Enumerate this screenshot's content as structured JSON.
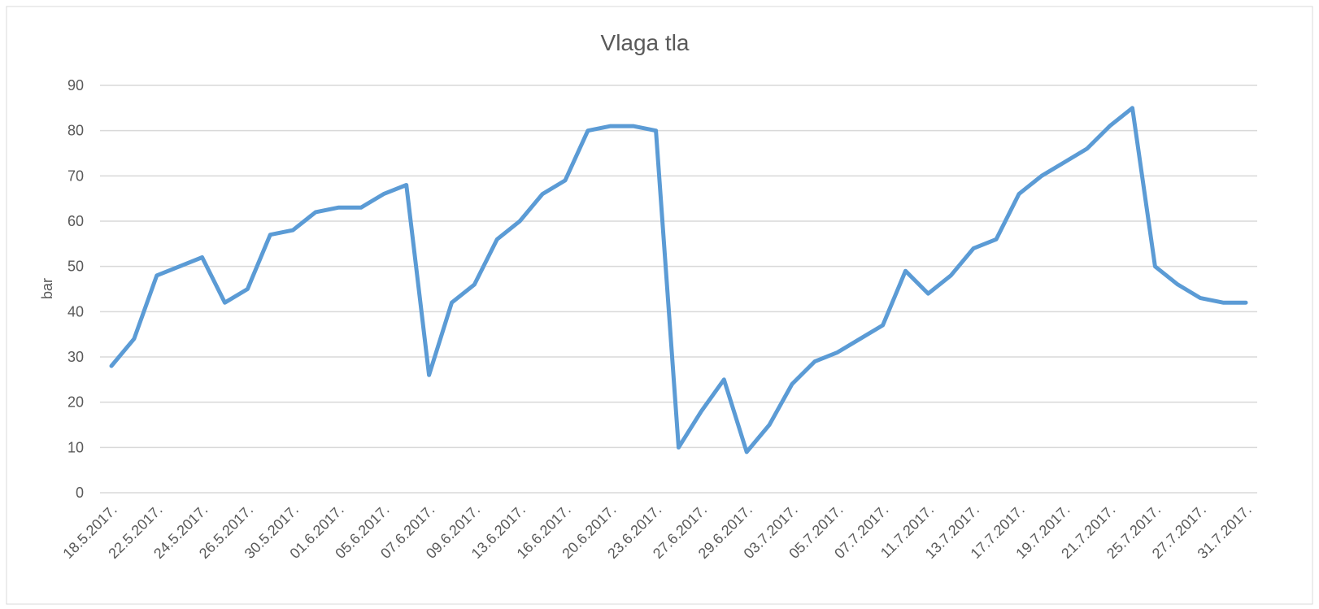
{
  "chart_data": {
    "type": "line",
    "title": "Vlaga  tla",
    "y_label": "bar",
    "categories": [
      "18.5.2017.",
      null,
      "22.5.2017.",
      null,
      "24.5.2017.",
      null,
      "26.5.2017.",
      null,
      "30.5.2017.",
      null,
      "01.6.2017.",
      null,
      "05.6.2017.",
      null,
      "07.6.2017.",
      null,
      "09.6.2017.",
      null,
      "13.6.2017.",
      null,
      "16.6.2017.",
      null,
      "20.6.2017.",
      null,
      "23.6.2017.",
      null,
      "27.6.2017.",
      null,
      "29.6.2017.",
      null,
      "03.7.2017.",
      null,
      "05.7.2017.",
      null,
      "07.7.2017.",
      null,
      "11.7.2017.",
      null,
      "13.7.2017.",
      null,
      "17.7.2017.",
      null,
      "19.7.2017.",
      null,
      "21.7.2017.",
      null,
      "25.7.2017.",
      null,
      "27.7.2017.",
      null,
      "31.7.2017."
    ],
    "values": [
      28,
      34,
      48,
      50,
      52,
      42,
      45,
      57,
      58,
      62,
      63,
      63,
      66,
      68,
      26,
      42,
      46,
      56,
      60,
      66,
      69,
      80,
      81,
      81,
      80,
      10,
      18,
      25,
      9,
      15,
      24,
      29,
      31,
      34,
      37,
      49,
      44,
      48,
      54,
      56,
      66,
      70,
      73,
      76,
      81,
      85,
      50,
      46,
      43,
      42,
      42
    ],
    "color": "#5b9bd5",
    "ylim": [
      0,
      90
    ],
    "yticks": [
      0,
      10,
      20,
      30,
      40,
      50,
      60,
      70,
      80,
      90
    ],
    "grid": true
  }
}
